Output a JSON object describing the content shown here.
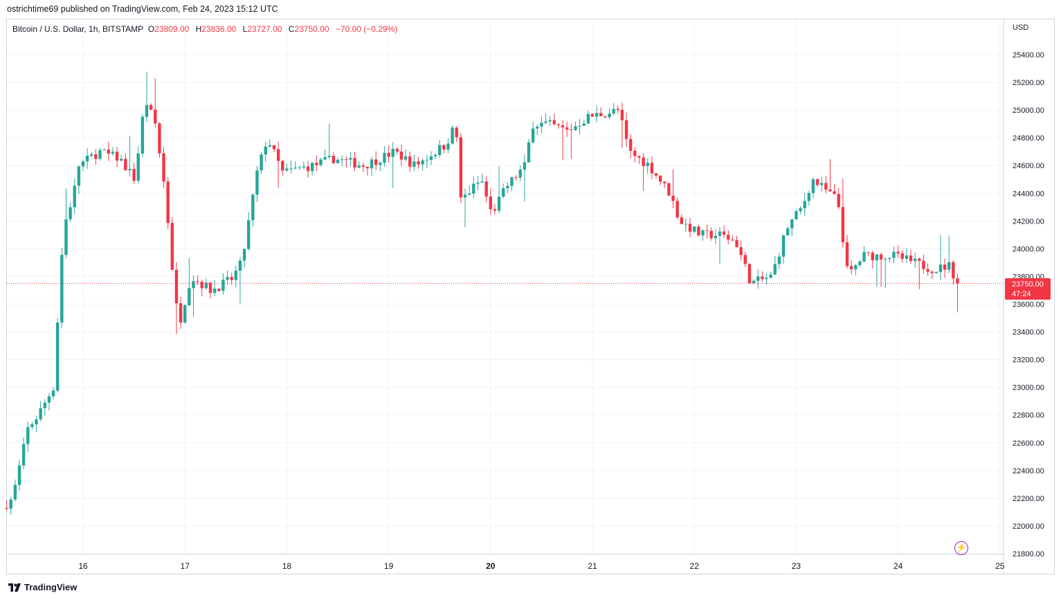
{
  "header": {
    "text": "ostrichtime69 published on TradingView.com, Feb 24, 2023 15:12 UTC"
  },
  "legend": {
    "symbol": "Bitcoin / U.S. Dollar, 1h, BITSTAMP",
    "o_label": "O",
    "o_value": "23809.00",
    "h_label": "H",
    "h_value": "23836.00",
    "l_label": "L",
    "l_value": "23727.00",
    "c_label": "C",
    "c_value": "23750.00",
    "change": "−70.00 (−0.29%)"
  },
  "axis": {
    "currency": "USD"
  },
  "price_tag": {
    "price": "23750.00",
    "countdown": "47:24"
  },
  "footer": {
    "brand": "TradingView"
  },
  "icons": {
    "bolt": "lightning-icon",
    "logo": "tradingview-logo-icon"
  },
  "colors": {
    "up": "#26a69a",
    "down": "#f23645",
    "grid": "#f0f3fa",
    "last_price_line": "#f23645"
  },
  "chart_data": {
    "type": "candlestick",
    "timeframe": "1h",
    "ylim": [
      21800,
      25500
    ],
    "y_ticks": [
      21800,
      22000,
      22200,
      22400,
      22600,
      22800,
      23000,
      23200,
      23400,
      23600,
      23800,
      24000,
      24200,
      24400,
      24600,
      24800,
      25000,
      25200,
      25400
    ],
    "x_ticks": [
      {
        "day": 16,
        "label": "16",
        "bold": false
      },
      {
        "day": 17,
        "label": "17",
        "bold": false
      },
      {
        "day": 18,
        "label": "18",
        "bold": false
      },
      {
        "day": 19,
        "label": "19",
        "bold": false
      },
      {
        "day": 20,
        "label": "20",
        "bold": true
      },
      {
        "day": 21,
        "label": "21",
        "bold": false
      },
      {
        "day": 22,
        "label": "22",
        "bold": false
      },
      {
        "day": 23,
        "label": "23",
        "bold": false
      },
      {
        "day": 24,
        "label": "24",
        "bold": false
      },
      {
        "day": 25,
        "label": "25",
        "bold": false
      }
    ],
    "last_close": 23750,
    "anchors": [
      [
        15.25,
        22130
      ],
      [
        15.35,
        22200
      ],
      [
        15.5,
        22700
      ],
      [
        15.6,
        22800
      ],
      [
        15.75,
        23000
      ],
      [
        15.85,
        24150
      ],
      [
        15.95,
        24400
      ],
      [
        16.0,
        24600
      ],
      [
        16.2,
        24700
      ],
      [
        16.4,
        24650
      ],
      [
        16.55,
        24500
      ],
      [
        16.65,
        25080
      ],
      [
        16.75,
        24900
      ],
      [
        16.85,
        24400
      ],
      [
        16.95,
        23600
      ],
      [
        17.0,
        23500
      ],
      [
        17.1,
        23800
      ],
      [
        17.3,
        23700
      ],
      [
        17.5,
        23780
      ],
      [
        17.6,
        23900
      ],
      [
        17.75,
        24550
      ],
      [
        17.85,
        24800
      ],
      [
        18.0,
        24550
      ],
      [
        18.3,
        24600
      ],
      [
        18.5,
        24650
      ],
      [
        18.8,
        24600
      ],
      [
        19.1,
        24700
      ],
      [
        19.3,
        24600
      ],
      [
        19.6,
        24750
      ],
      [
        19.7,
        24900
      ],
      [
        19.75,
        24350
      ],
      [
        19.95,
        24500
      ],
      [
        20.05,
        24250
      ],
      [
        20.2,
        24450
      ],
      [
        20.38,
        24600
      ],
      [
        20.45,
        24900
      ],
      [
        20.6,
        24900
      ],
      [
        20.8,
        24850
      ],
      [
        21.0,
        24950
      ],
      [
        21.3,
        25000
      ],
      [
        21.4,
        24700
      ],
      [
        21.6,
        24600
      ],
      [
        21.7,
        24500
      ],
      [
        21.8,
        24400
      ],
      [
        21.9,
        24200
      ],
      [
        22.1,
        24100
      ],
      [
        22.3,
        24100
      ],
      [
        22.45,
        24050
      ],
      [
        22.6,
        23750
      ],
      [
        22.8,
        23800
      ],
      [
        22.95,
        24150
      ],
      [
        23.1,
        24300
      ],
      [
        23.2,
        24500
      ],
      [
        23.45,
        24350
      ],
      [
        23.55,
        23800
      ],
      [
        23.7,
        23950
      ],
      [
        23.85,
        23950
      ],
      [
        24.0,
        23950
      ],
      [
        24.2,
        23900
      ],
      [
        24.4,
        23850
      ],
      [
        24.55,
        23880
      ],
      [
        24.62,
        23750
      ]
    ]
  }
}
